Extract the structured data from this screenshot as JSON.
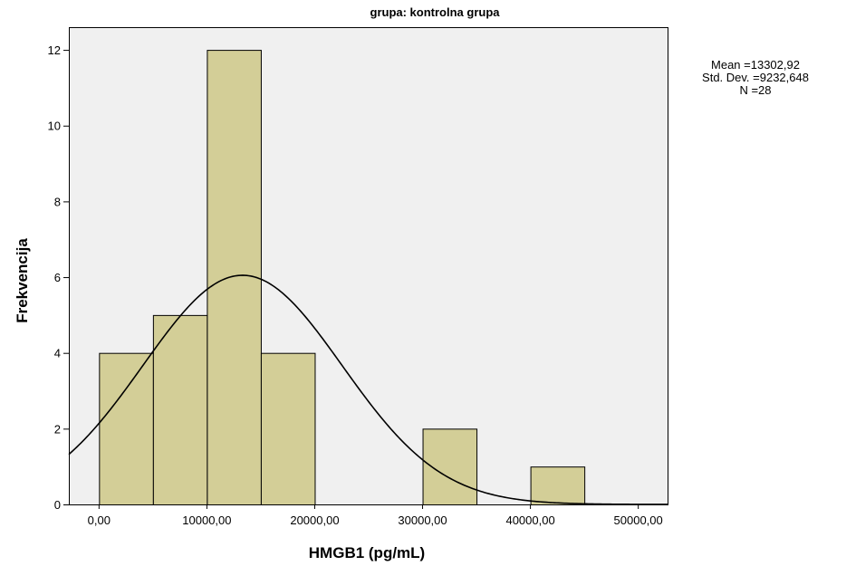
{
  "chart_data": {
    "type": "bar",
    "title": "grupa: kontrolna grupa",
    "xlabel": "HMGB1 (pg/mL)",
    "ylabel": "Frekvencija",
    "bins": [
      {
        "x0": 0,
        "x1": 5000,
        "count": 4
      },
      {
        "x0": 5000,
        "x1": 10000,
        "count": 5
      },
      {
        "x0": 10000,
        "x1": 15000,
        "count": 12
      },
      {
        "x0": 15000,
        "x1": 20000,
        "count": 4
      },
      {
        "x0": 20000,
        "x1": 25000,
        "count": 0
      },
      {
        "x0": 25000,
        "x1": 30000,
        "count": 0
      },
      {
        "x0": 30000,
        "x1": 35000,
        "count": 2
      },
      {
        "x0": 35000,
        "x1": 40000,
        "count": 0
      },
      {
        "x0": 40000,
        "x1": 45000,
        "count": 1
      }
    ],
    "x_ticks": [
      {
        "value": 0,
        "label": "0,00"
      },
      {
        "value": 10000,
        "label": "10000,00"
      },
      {
        "value": 20000,
        "label": "20000,00"
      },
      {
        "value": 30000,
        "label": "30000,00"
      },
      {
        "value": 40000,
        "label": "40000,00"
      },
      {
        "value": 50000,
        "label": "50000,00"
      }
    ],
    "y_ticks": [
      {
        "value": 0,
        "label": "0"
      },
      {
        "value": 2,
        "label": "2"
      },
      {
        "value": 4,
        "label": "4"
      },
      {
        "value": 6,
        "label": "6"
      },
      {
        "value": 8,
        "label": "8"
      },
      {
        "value": 10,
        "label": "10"
      },
      {
        "value": 12,
        "label": "12"
      }
    ],
    "xlim": [
      -2800,
      52800
    ],
    "ylim": [
      0,
      12.6
    ],
    "normal_curve": {
      "mean": 13302.92,
      "sd": 9232.648,
      "n": 28,
      "bin_width": 5000
    },
    "stats_text": [
      "Mean =13302,92",
      "Std. Dev. =9232,648",
      "N =28"
    ],
    "colors": {
      "plot_background": "#f0f0f0",
      "bar_fill": "#d3ce97",
      "bar_stroke": "#000000",
      "curve": "#000000"
    }
  }
}
